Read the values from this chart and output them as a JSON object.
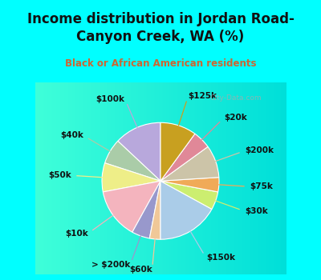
{
  "title": "Income distribution in Jordan Road-\nCanyon Creek, WA (%)",
  "subtitle": "Black or African American residents",
  "bg_color": "#00ffff",
  "chart_bg_colors": [
    "#c8ede0",
    "#ddf5ec",
    "#f0faf6",
    "#e8f8f2"
  ],
  "labels": [
    "$100k",
    "$40k",
    "$50k",
    "$10k",
    "> $200k",
    "$60k",
    "$150k",
    "$30k",
    "$75k",
    "$200k",
    "$20k",
    "$125k"
  ],
  "values": [
    13,
    7,
    8,
    14,
    5,
    3,
    17,
    5,
    4,
    9,
    5,
    10
  ],
  "colors": [
    "#b8a8dc",
    "#aacca8",
    "#eeee88",
    "#f4b4be",
    "#9898cc",
    "#f0c898",
    "#aacce8",
    "#ccee70",
    "#f0aa58",
    "#ccc4a8",
    "#e08898",
    "#c8a020"
  ],
  "wedge_edge_color": "white",
  "wedge_edge_width": 0.8,
  "label_fontsize": 7.5,
  "label_color": "#111111",
  "watermark": "City-Data.com",
  "title_fontsize": 12,
  "subtitle_fontsize": 8.5,
  "subtitle_color": "#cc6633"
}
